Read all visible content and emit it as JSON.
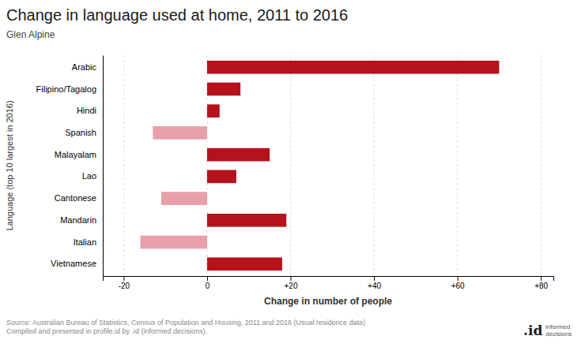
{
  "chart_data": {
    "type": "bar",
    "orientation": "horizontal",
    "title": "Change in language used at home, 2011 to 2016",
    "subtitle": "Glen Alpine",
    "xlabel": "Change in number of people",
    "ylabel": "Language (top 10 largest in 2016)",
    "categories": [
      "Arabic",
      "Filipino/Tagalog",
      "Hindi",
      "Spanish",
      "Malayalam",
      "Lao",
      "Cantonese",
      "Mandarin",
      "Italian",
      "Vietnamese"
    ],
    "values": [
      70,
      8,
      3,
      -13,
      15,
      7,
      -11,
      19,
      -16,
      18
    ],
    "colors": [
      "#b5121b",
      "#b5121b",
      "#b5121b",
      "#e8a0a8",
      "#b5121b",
      "#b5121b",
      "#e8a0a8",
      "#b5121b",
      "#e8a0a8",
      "#b5121b"
    ],
    "xlim": [
      -25,
      83
    ],
    "xticks": [
      -20,
      0,
      {
        "value": 20,
        "label": "+20"
      },
      {
        "value": 40,
        "label": "+40"
      },
      {
        "value": 60,
        "label": "+60"
      },
      {
        "value": 80,
        "label": "+80"
      }
    ],
    "grid": true,
    "annotations": [
      "Source: Australian Bureau of Statistics, Census of Population and Housing, 2011 and 2016 (Usual residence data)\nCompiled and presented in profile.id by .id (informed decisions).",
      ".id",
      "informed\ndecisions"
    ]
  }
}
